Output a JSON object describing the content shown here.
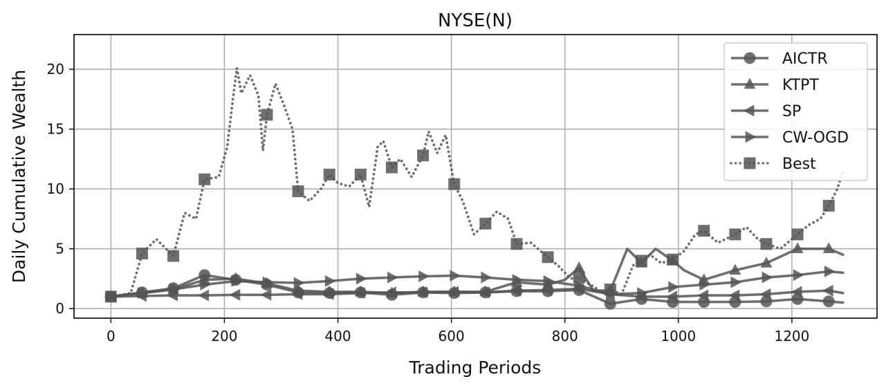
{
  "chart_data": {
    "type": "line",
    "title": "NYSE(N)",
    "xlabel": "Trading Periods",
    "ylabel": "Daily Cumulative Wealth",
    "xlim": [
      -65,
      1350
    ],
    "ylim": [
      -0.8,
      22.9
    ],
    "xticks": [
      0,
      200,
      400,
      600,
      800,
      1000,
      1200
    ],
    "yticks": [
      0,
      5,
      10,
      15,
      20
    ],
    "grid": true,
    "legend_position": "top-right",
    "line_color": "#555555",
    "series": [
      {
        "name": "AICTR",
        "marker": "circle",
        "linestyle": "solid",
        "x": [
          0,
          55,
          110,
          165,
          220,
          275,
          330,
          385,
          440,
          495,
          550,
          605,
          660,
          715,
          770,
          825,
          880,
          935,
          990,
          1045,
          1100,
          1155,
          1210,
          1265,
          1290
        ],
        "y": [
          1.0,
          1.35,
          1.7,
          2.8,
          2.4,
          2.0,
          1.35,
          1.3,
          1.35,
          1.15,
          1.35,
          1.3,
          1.35,
          1.45,
          1.45,
          1.55,
          0.4,
          0.8,
          0.55,
          0.55,
          0.55,
          0.6,
          0.8,
          0.6,
          0.5
        ]
      },
      {
        "name": "KTPT",
        "marker": "triangle-up",
        "linestyle": "solid",
        "x": [
          0,
          55,
          110,
          165,
          220,
          275,
          330,
          385,
          440,
          495,
          550,
          605,
          660,
          715,
          770,
          800,
          825,
          850,
          880,
          910,
          935,
          960,
          990,
          1010,
          1045,
          1100,
          1155,
          1210,
          1265,
          1290
        ],
        "y": [
          1.0,
          1.3,
          1.6,
          2.4,
          2.5,
          2.1,
          1.5,
          1.4,
          1.4,
          1.3,
          1.4,
          1.4,
          1.4,
          2.2,
          2.0,
          2.4,
          3.4,
          1.5,
          1.5,
          5.0,
          3.8,
          5.0,
          4.0,
          3.2,
          2.4,
          3.2,
          3.8,
          5.0,
          5.0,
          4.5
        ]
      },
      {
        "name": "SP",
        "marker": "triangle-left",
        "linestyle": "solid",
        "x": [
          0,
          55,
          110,
          165,
          220,
          275,
          330,
          385,
          440,
          495,
          550,
          605,
          660,
          715,
          770,
          825,
          880,
          935,
          990,
          1045,
          1100,
          1155,
          1210,
          1265,
          1290
        ],
        "y": [
          1.0,
          1.05,
          1.1,
          1.1,
          1.15,
          1.15,
          1.2,
          1.2,
          1.3,
          1.35,
          1.35,
          1.4,
          1.35,
          1.5,
          1.55,
          1.65,
          1.2,
          1.0,
          1.0,
          1.1,
          1.1,
          1.2,
          1.4,
          1.5,
          1.3
        ]
      },
      {
        "name": "CW-OGD",
        "marker": "triangle-right",
        "linestyle": "solid",
        "x": [
          0,
          55,
          110,
          165,
          220,
          275,
          330,
          385,
          440,
          495,
          550,
          605,
          660,
          715,
          770,
          825,
          880,
          935,
          990,
          1045,
          1100,
          1155,
          1210,
          1265,
          1290
        ],
        "y": [
          1.0,
          1.3,
          1.6,
          2.0,
          2.3,
          2.2,
          2.15,
          2.3,
          2.5,
          2.6,
          2.7,
          2.75,
          2.6,
          2.4,
          2.3,
          1.9,
          1.2,
          1.3,
          1.8,
          2.0,
          2.2,
          2.6,
          2.8,
          3.1,
          3.0
        ]
      },
      {
        "name": "Best",
        "marker": "square",
        "linestyle": "dotted",
        "x": [
          0,
          35,
          55,
          80,
          110,
          130,
          150,
          165,
          190,
          205,
          215,
          222,
          230,
          245,
          260,
          268,
          275,
          290,
          305,
          320,
          330,
          350,
          370,
          385,
          400,
          420,
          440,
          455,
          470,
          480,
          495,
          510,
          530,
          550,
          560,
          575,
          590,
          605,
          620,
          640,
          660,
          680,
          700,
          715,
          740,
          770,
          790,
          810,
          825,
          845,
          865,
          880,
          900,
          920,
          935,
          950,
          970,
          990,
          1010,
          1030,
          1045,
          1070,
          1100,
          1120,
          1140,
          1155,
          1180,
          1210,
          1230,
          1250,
          1265,
          1280,
          1290
        ],
        "y": [
          1.0,
          1.3,
          4.6,
          5.8,
          4.4,
          8.0,
          7.5,
          10.8,
          11.0,
          13.5,
          17.5,
          20.1,
          18.0,
          19.5,
          17.8,
          13.2,
          16.2,
          18.8,
          17.0,
          15.0,
          9.8,
          9.0,
          10.0,
          11.2,
          10.5,
          10.2,
          11.2,
          8.5,
          13.5,
          14.0,
          11.8,
          12.5,
          11.0,
          12.8,
          14.8,
          13.0,
          14.5,
          10.4,
          9.0,
          6.2,
          7.1,
          8.1,
          7.5,
          5.4,
          5.5,
          4.3,
          3.5,
          2.5,
          2.6,
          2.0,
          1.4,
          1.6,
          1.2,
          3.6,
          4.0,
          4.5,
          3.8,
          4.1,
          4.8,
          6.2,
          6.5,
          5.5,
          6.2,
          6.8,
          5.8,
          5.4,
          5.0,
          6.2,
          7.0,
          7.5,
          8.6,
          10.0,
          11.5
        ]
      }
    ]
  }
}
